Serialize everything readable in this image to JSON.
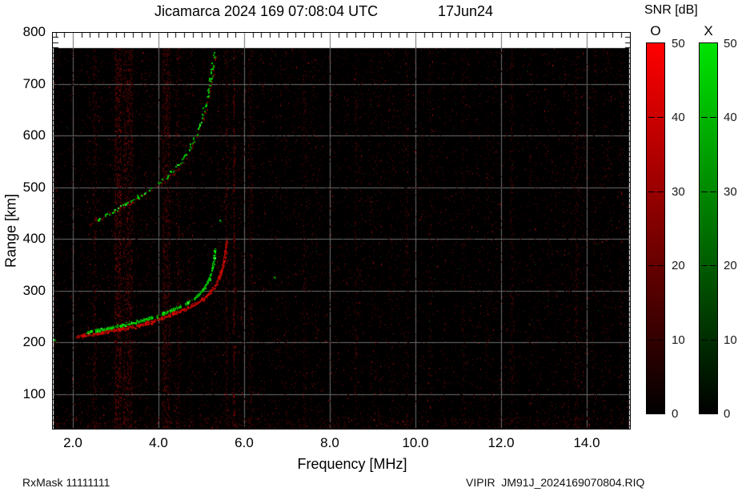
{
  "title": {
    "main": "Jicamarca 2024 169 07:08:04 UTC",
    "date": "17Jun24"
  },
  "footer": {
    "rx_mask": "RxMask 11111111",
    "filename": "VIPIR  JM91J_2024169070804.RIQ"
  },
  "colorbar": {
    "title": "SNR [dB]",
    "o_label": "O",
    "x_label": "X",
    "ticks": [
      50,
      40,
      30,
      20,
      10,
      0
    ],
    "o_top_color": "#ff0000",
    "x_top_color": "#00e400",
    "bottom_color": "#000000"
  },
  "chart_data": {
    "type": "scatter",
    "subtype": "ionogram",
    "title": "Jicamarca 2024 169 07:08:04 UTC  17Jun24",
    "xlabel": "Frequency [MHz]",
    "ylabel": "Range [km]",
    "xlim": [
      1.5,
      15.0
    ],
    "ylim": [
      30,
      800
    ],
    "x_ticks": [
      2.0,
      4.0,
      6.0,
      8.0,
      10.0,
      12.0,
      14.0
    ],
    "x_tick_labels": [
      "2.0",
      "4.0",
      "6.0",
      "8.0",
      "10.0",
      "12.0",
      "14.0"
    ],
    "y_ticks": [
      100,
      200,
      300,
      400,
      500,
      600,
      700,
      800
    ],
    "y_tick_labels": [
      "100",
      "200",
      "300",
      "400",
      "500",
      "600",
      "700",
      "800"
    ],
    "x_minor_step": 0.2,
    "y_minor_step": 10,
    "grid": true,
    "grid_color": "#6e6e6e",
    "plot_background": "#000000",
    "data_extent": {
      "mhz": [
        1.55,
        14.95
      ],
      "km": [
        34,
        769
      ]
    },
    "snr_scale_db": [
      0,
      50
    ],
    "legend": [
      {
        "name": "O",
        "color": "#ff0000"
      },
      {
        "name": "X",
        "color": "#00e400"
      }
    ],
    "series": [
      {
        "name": "X-mode first hop",
        "mode": "X",
        "color": "#00cc00",
        "style": "band",
        "points": [
          [
            2.32,
            220
          ],
          [
            2.6,
            225
          ],
          [
            2.9,
            230
          ],
          [
            3.2,
            235
          ],
          [
            3.5,
            241
          ],
          [
            3.8,
            248
          ],
          [
            4.0,
            253
          ],
          [
            4.2,
            259
          ],
          [
            4.4,
            266
          ],
          [
            4.6,
            274
          ],
          [
            4.8,
            284
          ],
          [
            4.95,
            295
          ],
          [
            5.08,
            308
          ],
          [
            5.18,
            324
          ],
          [
            5.25,
            343
          ],
          [
            5.29,
            363
          ],
          [
            5.31,
            382
          ]
        ]
      },
      {
        "name": "O-mode first hop",
        "mode": "O",
        "color": "#dd0000",
        "style": "band",
        "points": [
          [
            2.08,
            212
          ],
          [
            2.3,
            215
          ],
          [
            2.6,
            219
          ],
          [
            2.9,
            223
          ],
          [
            3.2,
            228
          ],
          [
            3.5,
            233
          ],
          [
            3.8,
            240
          ],
          [
            4.0,
            246
          ],
          [
            4.2,
            252
          ],
          [
            4.4,
            258
          ],
          [
            4.6,
            265
          ],
          [
            4.8,
            273
          ],
          [
            5.0,
            282
          ],
          [
            5.15,
            293
          ],
          [
            5.28,
            306
          ],
          [
            5.38,
            321
          ],
          [
            5.46,
            339
          ],
          [
            5.52,
            359
          ],
          [
            5.56,
            380
          ],
          [
            5.58,
            398
          ]
        ]
      },
      {
        "name": "O-mode second hop",
        "mode": "O",
        "color": "#8b0000",
        "style": "sparse",
        "points": [
          [
            2.35,
            430
          ],
          [
            2.6,
            440
          ],
          [
            2.9,
            452
          ],
          [
            3.2,
            464
          ],
          [
            3.5,
            477
          ],
          [
            3.8,
            492
          ],
          [
            4.1,
            509
          ],
          [
            4.4,
            532
          ],
          [
            4.65,
            560
          ],
          [
            4.85,
            592
          ],
          [
            5.02,
            628
          ],
          [
            5.15,
            672
          ],
          [
            5.25,
            718
          ],
          [
            5.31,
            755
          ]
        ]
      },
      {
        "name": "X-mode second hop",
        "mode": "X",
        "color": "#00aa00",
        "style": "sparse",
        "points": [
          [
            2.55,
            436
          ],
          [
            2.75,
            446
          ],
          [
            3.0,
            458
          ],
          [
            3.25,
            470
          ],
          [
            3.5,
            482
          ],
          [
            3.75,
            495
          ],
          [
            4.0,
            509
          ],
          [
            4.25,
            528
          ],
          [
            4.5,
            550
          ],
          [
            4.7,
            574
          ],
          [
            4.87,
            602
          ],
          [
            5.0,
            632
          ],
          [
            5.1,
            664
          ],
          [
            5.18,
            698
          ],
          [
            5.25,
            734
          ],
          [
            5.3,
            760
          ]
        ]
      }
    ],
    "stray_echoes": [
      [
        1.56,
        207
      ],
      [
        6.7,
        328
      ],
      [
        5.42,
        437
      ]
    ],
    "rfi_streaks": [
      {
        "mhz": 2.5,
        "w": 5,
        "i": 0.45
      },
      {
        "mhz": 3.05,
        "w": 9,
        "i": 0.8
      },
      {
        "mhz": 3.28,
        "w": 12,
        "i": 0.65
      },
      {
        "mhz": 4.18,
        "w": 10,
        "i": 0.65
      },
      {
        "mhz": 4.45,
        "w": 5,
        "i": 0.4
      },
      {
        "mhz": 5.58,
        "w": 3,
        "i": 0.55
      },
      {
        "mhz": 5.76,
        "w": 2,
        "i": 1.0
      },
      {
        "mhz": 6.15,
        "w": 6,
        "i": 0.4
      },
      {
        "mhz": 7.4,
        "w": 5,
        "i": 0.3
      },
      {
        "mhz": 8.6,
        "w": 4,
        "i": 0.3
      },
      {
        "mhz": 9.8,
        "w": 4,
        "i": 0.3
      },
      {
        "mhz": 11.1,
        "w": 4,
        "i": 0.25
      },
      {
        "mhz": 12.25,
        "w": 5,
        "i": 0.3
      },
      {
        "mhz": 13.75,
        "w": 5,
        "i": 0.35
      }
    ],
    "noise": {
      "speckle_color_max": "#5a0000",
      "bottom_band_km": [
        33,
        57
      ]
    }
  }
}
